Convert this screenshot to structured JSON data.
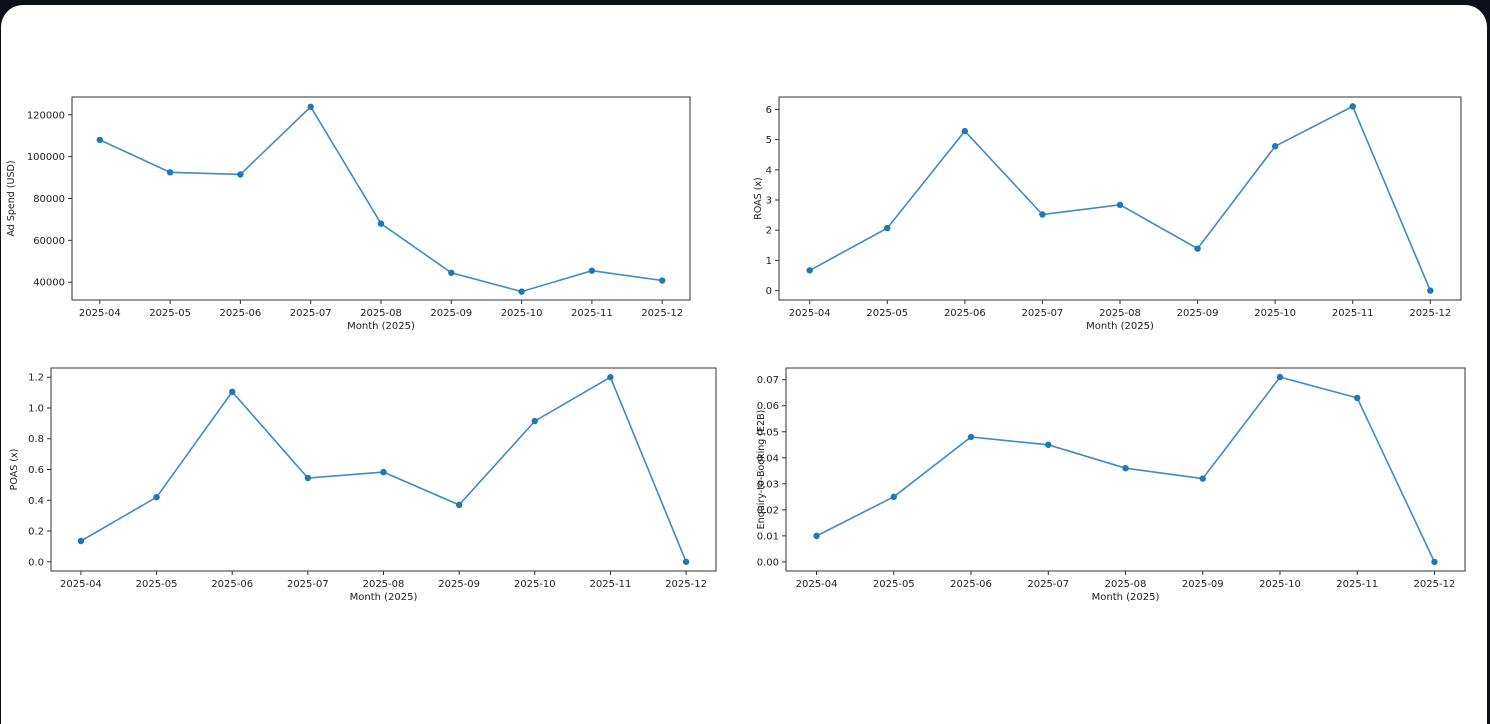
{
  "chart_data": [
    {
      "type": "line",
      "xlabel": "Month (2025)",
      "ylabel": "Ad Spend (USD)",
      "categories": [
        "2025-04",
        "2025-05",
        "2025-06",
        "2025-07",
        "2025-08",
        "2025-09",
        "2025-10",
        "2025-11",
        "2025-12"
      ],
      "values": [
        108000,
        92500,
        91500,
        123800,
        68000,
        44500,
        35500,
        45500,
        40800
      ],
      "ylim": [
        31500,
        128500
      ],
      "yticks": [
        40000,
        60000,
        80000,
        100000,
        120000
      ],
      "grid": false,
      "color": "#1f77b4"
    },
    {
      "type": "line",
      "xlabel": "Month (2025)",
      "ylabel": "ROAS (x)",
      "categories": [
        "2025-04",
        "2025-05",
        "2025-06",
        "2025-07",
        "2025-08",
        "2025-09",
        "2025-10",
        "2025-11",
        "2025-12"
      ],
      "values": [
        0.67,
        2.07,
        5.28,
        2.52,
        2.84,
        1.39,
        4.78,
        6.1,
        0.0
      ],
      "ylim": [
        -0.31,
        6.41
      ],
      "yticks": [
        0,
        1,
        2,
        3,
        4,
        5,
        6
      ],
      "grid": false,
      "color": "#1f77b4"
    },
    {
      "type": "line",
      "xlabel": "Month (2025)",
      "ylabel": "POAS (x)",
      "categories": [
        "2025-04",
        "2025-05",
        "2025-06",
        "2025-07",
        "2025-08",
        "2025-09",
        "2025-10",
        "2025-11",
        "2025-12"
      ],
      "values": [
        0.135,
        0.42,
        1.105,
        0.545,
        0.583,
        0.37,
        0.915,
        1.2,
        0.0
      ],
      "ylim": [
        -0.06,
        1.26
      ],
      "yticks": [
        0.0,
        0.2,
        0.4,
        0.6,
        0.8,
        1.0,
        1.2
      ],
      "grid": false,
      "color": "#1f77b4"
    },
    {
      "type": "line",
      "xlabel": "Month (2025)",
      "ylabel": "Enquiry-to-Booking (E2B)",
      "categories": [
        "2025-04",
        "2025-05",
        "2025-06",
        "2025-07",
        "2025-08",
        "2025-09",
        "2025-10",
        "2025-11",
        "2025-12"
      ],
      "values": [
        0.01,
        0.025,
        0.048,
        0.045,
        0.036,
        0.032,
        0.071,
        0.063,
        0.0
      ],
      "ylim": [
        -0.0035,
        0.0745
      ],
      "yticks": [
        0.0,
        0.01,
        0.02,
        0.03,
        0.04,
        0.05,
        0.06,
        0.07
      ],
      "grid": false,
      "color": "#1f77b4"
    }
  ]
}
